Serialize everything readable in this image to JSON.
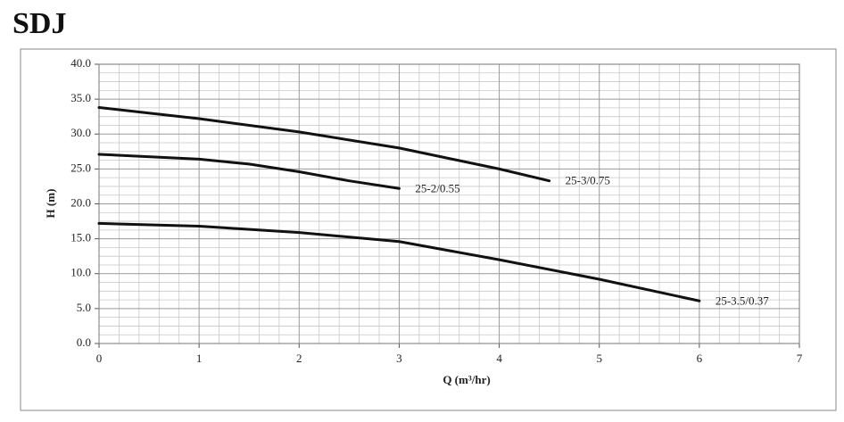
{
  "chart_data": {
    "type": "line",
    "title": "SDJ",
    "x_label": "Q (m³/hr)",
    "y_label": "H (m)",
    "xlim": [
      0,
      7
    ],
    "xticks": [
      0,
      1,
      2,
      3,
      4,
      5,
      6,
      7
    ],
    "ylim": [
      0,
      40
    ],
    "yticks": [
      {
        "value": 0,
        "label": "0.0"
      },
      {
        "value": 5,
        "label": "5.0"
      },
      {
        "value": 10,
        "label": "10.0"
      },
      {
        "value": 15,
        "label": "15.0"
      },
      {
        "value": 20,
        "label": "20.0"
      },
      {
        "value": 25,
        "label": "25.0"
      },
      {
        "value": 30,
        "label": "30.0"
      },
      {
        "value": 35,
        "label": "35.0"
      },
      {
        "value": 40,
        "label": "40.0"
      }
    ],
    "grid": true,
    "series": [
      {
        "name": "25-3/0.75",
        "color": "#111111",
        "x": [
          0,
          1,
          2,
          3,
          4,
          4.5
        ],
        "values": [
          33.8,
          32.2,
          30.3,
          28.0,
          25.0,
          23.3
        ]
      },
      {
        "name": "25-2/0.55",
        "color": "#111111",
        "x": [
          0,
          1,
          1.5,
          2,
          2.5,
          3
        ],
        "values": [
          27.1,
          26.4,
          25.7,
          24.6,
          23.3,
          22.2
        ]
      },
      {
        "name": "25-3.5/0.37",
        "color": "#111111",
        "x": [
          0,
          1,
          2,
          3,
          4,
          5,
          6
        ],
        "values": [
          17.2,
          16.8,
          15.9,
          14.6,
          12.0,
          9.2,
          6.1
        ]
      }
    ]
  }
}
